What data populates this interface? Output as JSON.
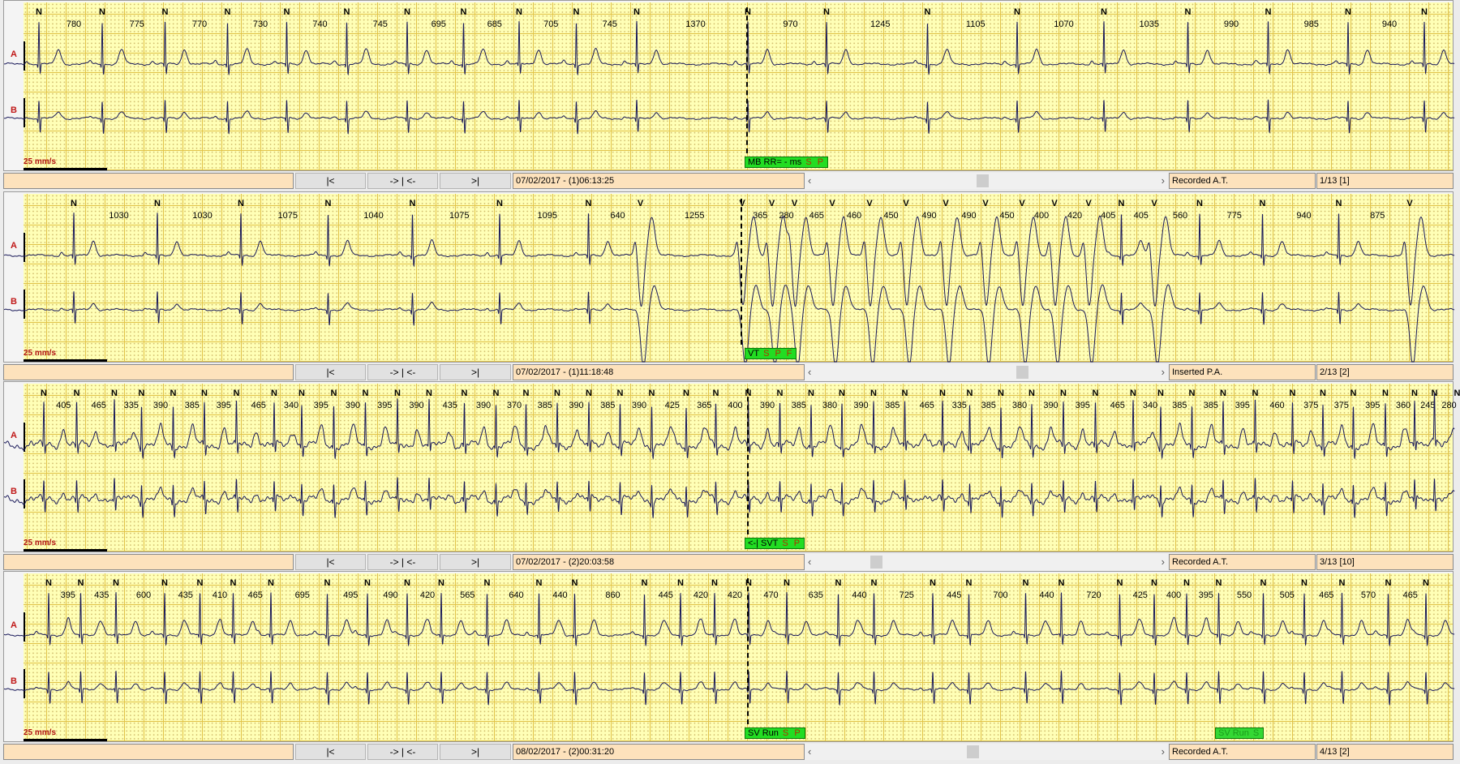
{
  "colors": {
    "grid_background": "#ffffb6",
    "grid_major": "#e1c34a",
    "trace": "#1a1a5a",
    "lead_label": "#c01818",
    "event_tag": "#22dd22",
    "panel_box": "#fde2bc"
  },
  "strips": [
    {
      "lead_a": "A",
      "lead_b": "B",
      "speed": "25 mm/s",
      "beats": [
        "N",
        "N",
        "N",
        "N",
        "N",
        "N",
        "N",
        "N",
        "N",
        "N",
        "N",
        "N",
        "N",
        "N",
        "N",
        "N",
        "N",
        "N",
        "N",
        "N"
      ],
      "intervals": [
        780,
        775,
        770,
        730,
        740,
        745,
        695,
        685,
        705,
        745,
        1370,
        970,
        1245,
        1105,
        1070,
        1035,
        990,
        985,
        940
      ],
      "event_beat": 11,
      "tags": [
        {
          "text": "MB RR= - ms",
          "flags": "S P",
          "faded": false
        }
      ],
      "nav": {
        "first": "|<",
        "center": "-> | <-",
        "last": ">|"
      },
      "timestamp": "07/02/2017 - (1)06:13:25",
      "scroll_left": "‹",
      "scroll_right": "›",
      "scroll_position": 0.5,
      "event_type": "Recorded A.T.",
      "index": "1/13 [1]"
    },
    {
      "lead_a": "A",
      "lead_b": "B",
      "speed": "25 mm/s",
      "beats": [
        "N",
        "N",
        "N",
        "N",
        "N",
        "N",
        "N",
        "V",
        "V",
        "V",
        "V",
        "V",
        "V",
        "V",
        "V",
        "V",
        "V",
        "V",
        "V",
        "N",
        "V",
        "N",
        "N",
        "N",
        "V"
      ],
      "intervals": [
        1030,
        1030,
        1075,
        1040,
        1075,
        1095,
        640,
        1255,
        365,
        280,
        465,
        460,
        450,
        490,
        490,
        450,
        400,
        420,
        405,
        405,
        560,
        775,
        940,
        875
      ],
      "event_beat": 8,
      "tags": [
        {
          "text": "VT",
          "flags": "S P F",
          "faded": false
        }
      ],
      "nav": {
        "first": "|<",
        "center": "-> | <-",
        "last": ">|"
      },
      "timestamp": "07/02/2017 - (1)11:18:48",
      "scroll_left": "‹",
      "scroll_right": "›",
      "scroll_position": 0.62,
      "event_type": "Inserted P.A.",
      "index": "2/13 [2]"
    },
    {
      "lead_a": "A",
      "lead_b": "B",
      "speed": "25 mm/s",
      "beats": [
        "N",
        "N",
        "N",
        "N",
        "N",
        "N",
        "N",
        "N",
        "N",
        "N",
        "N",
        "N",
        "N",
        "N",
        "N",
        "N",
        "N",
        "N",
        "N",
        "N",
        "N",
        "N",
        "N",
        "N",
        "N",
        "N",
        "N",
        "N",
        "N",
        "N",
        "N",
        "N",
        "N",
        "N",
        "N",
        "N",
        "N",
        "N",
        "N",
        "N",
        "N",
        "N",
        "N",
        "N",
        "N",
        "N"
      ],
      "intervals": [
        405,
        465,
        335,
        390,
        385,
        395,
        465,
        340,
        395,
        390,
        395,
        390,
        435,
        390,
        370,
        385,
        390,
        385,
        390,
        425,
        365,
        400,
        390,
        385,
        380,
        390,
        385,
        465,
        335,
        385,
        380,
        390,
        395,
        465,
        340,
        385,
        385,
        395,
        460,
        375,
        375,
        395,
        360,
        245,
        280
      ],
      "event_beat": 22,
      "tags": [
        {
          "text": "<-| SVT",
          "flags": "S P",
          "faded": false
        }
      ],
      "nav": {
        "first": "|<",
        "center": "-> | <-",
        "last": ">|"
      },
      "timestamp": "07/02/2017 - (2)20:03:58",
      "scroll_left": "‹",
      "scroll_right": "›",
      "scroll_position": 0.18,
      "event_type": "Recorded A.T.",
      "index": "3/13 [10]"
    },
    {
      "lead_a": "A",
      "lead_b": "B",
      "speed": "25 mm/s",
      "beats": [
        "N",
        "N",
        "N",
        "N",
        "N",
        "N",
        "N",
        "N",
        "N",
        "N",
        "N",
        "N",
        "N",
        "N",
        "N",
        "N",
        "N",
        "N",
        "N",
        "N",
        "N",
        "N",
        "N",
        "N",
        "N",
        "N",
        "N",
        "N",
        "N",
        "N",
        "N",
        "N",
        "N",
        "N"
      ],
      "intervals": [
        395,
        435,
        600,
        435,
        410,
        465,
        695,
        495,
        490,
        420,
        565,
        640,
        440,
        860,
        445,
        420,
        420,
        470,
        635,
        440,
        725,
        445,
        700,
        440,
        720,
        425,
        400,
        395,
        550,
        505,
        465,
        570,
        465
      ],
      "event_beat": 17,
      "tags": [
        {
          "text": "SV Run",
          "flags": "S P",
          "faded": false
        },
        {
          "text": "SV Run",
          "flags": "S",
          "faded": true
        }
      ],
      "nav": {
        "first": "|<",
        "center": "-> | <-",
        "last": ">|"
      },
      "timestamp": "08/02/2017 - (2)00:31:20",
      "scroll_left": "‹",
      "scroll_right": "›",
      "scroll_position": 0.47,
      "event_type": "Recorded A.T.",
      "index": "4/13 [2]"
    }
  ]
}
